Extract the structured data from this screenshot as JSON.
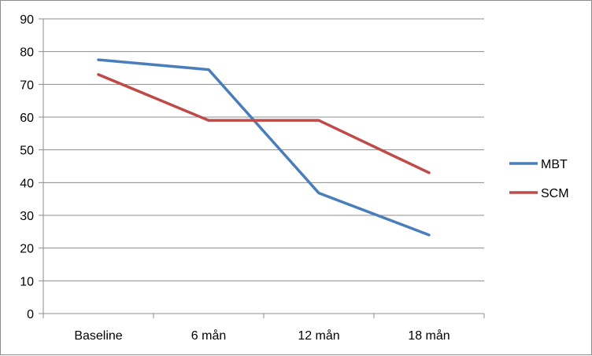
{
  "chart_data": {
    "type": "line",
    "title": "",
    "xlabel": "",
    "ylabel": "",
    "categories": [
      "Baseline",
      "6 mån",
      "12 mån",
      "18 mån"
    ],
    "series": [
      {
        "name": "MBT",
        "values": [
          77.5,
          74.5,
          36.8,
          24
        ],
        "color": "#4a7ebb"
      },
      {
        "name": "SCM",
        "values": [
          73,
          59,
          59,
          43
        ],
        "color": "#be4b48"
      }
    ],
    "ylim": [
      0,
      90
    ],
    "yticks": [
      0,
      10,
      20,
      30,
      40,
      50,
      60,
      70,
      80,
      90
    ],
    "grid": true,
    "legend": "right"
  }
}
